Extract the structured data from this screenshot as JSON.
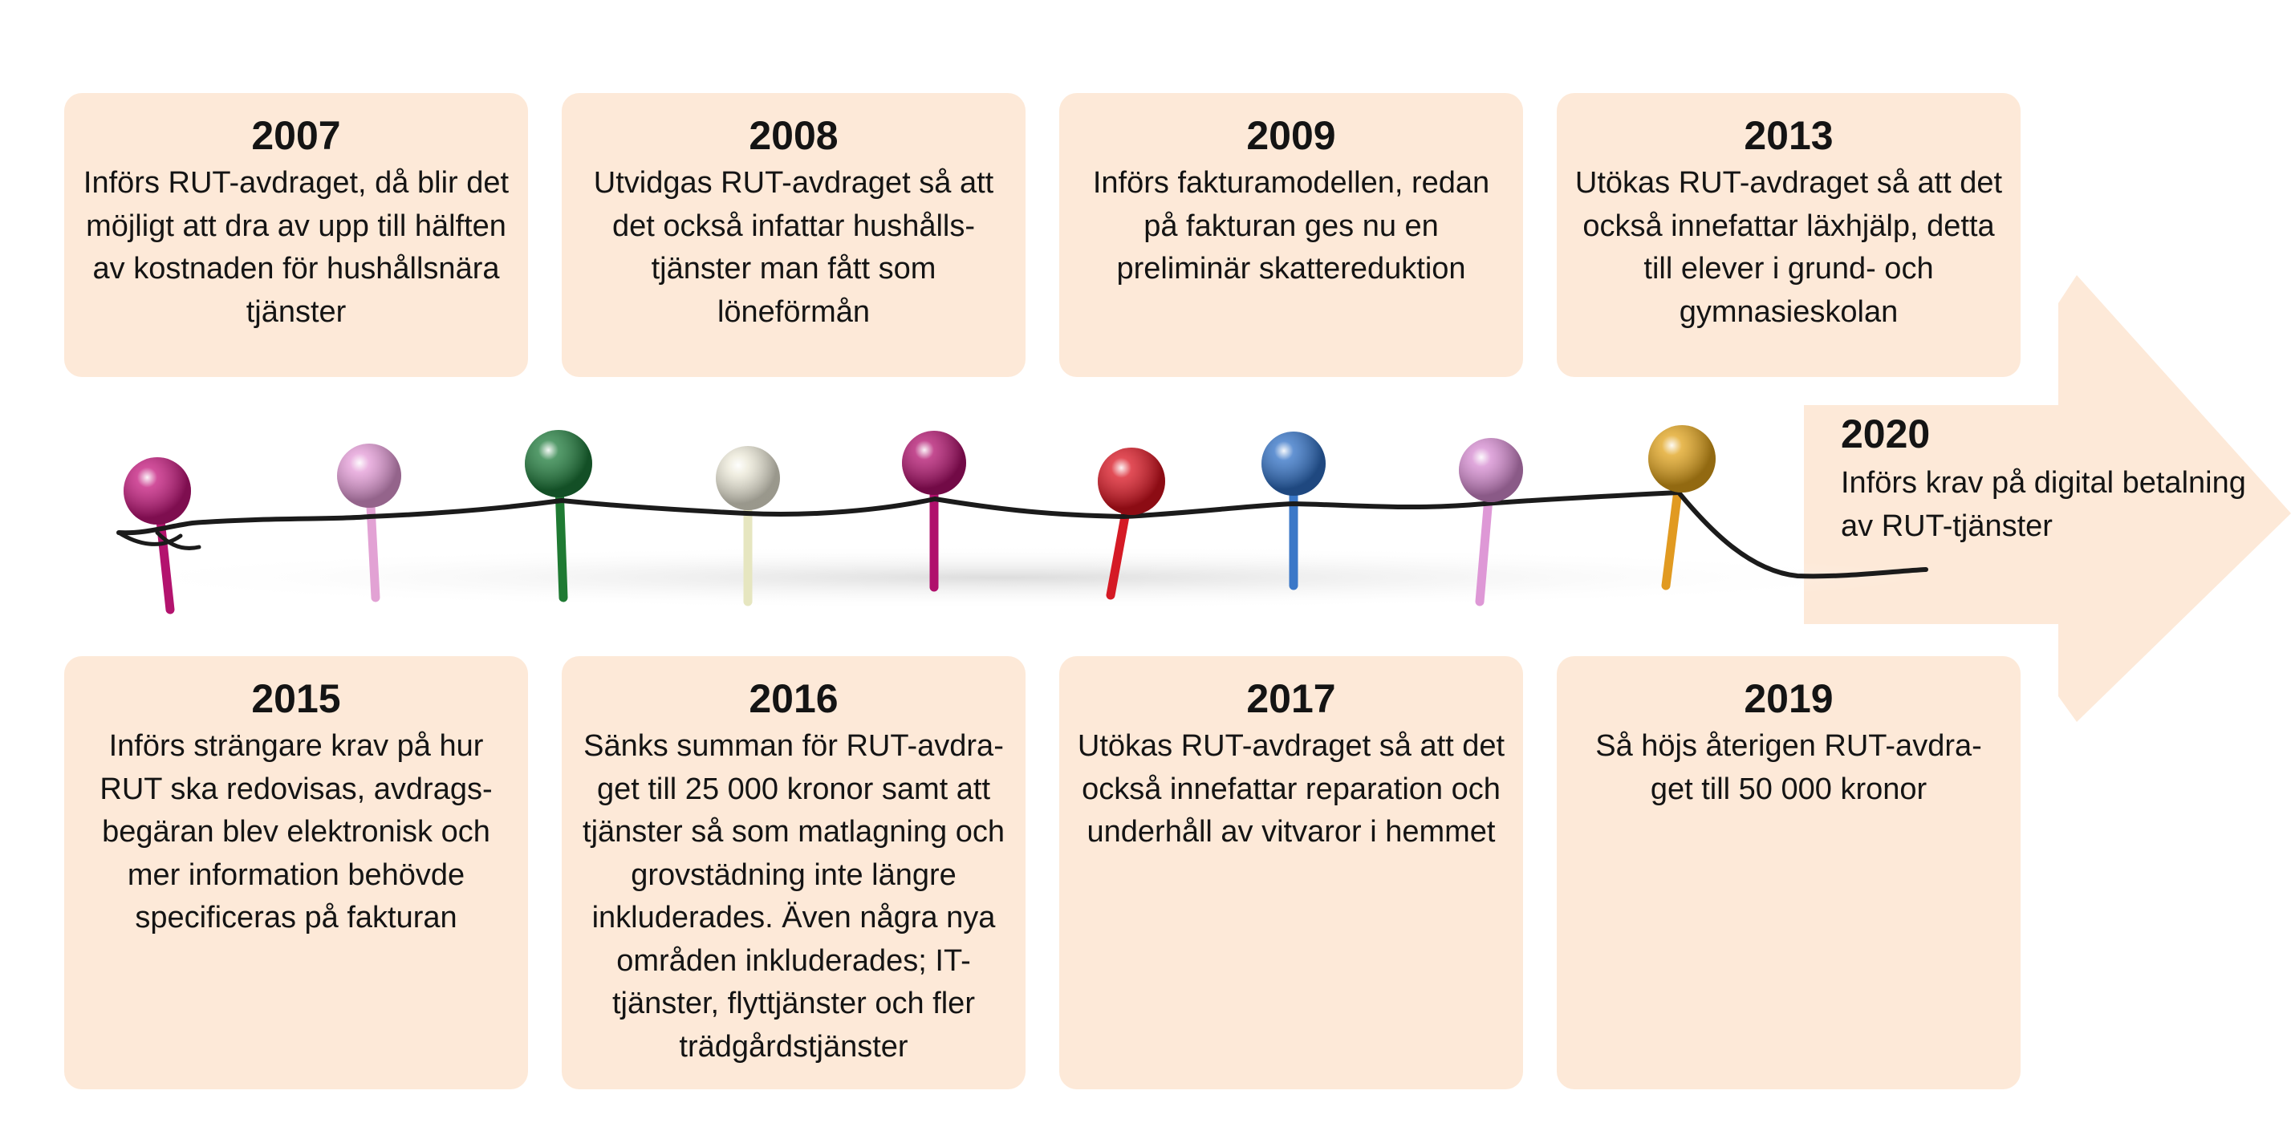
{
  "colors": {
    "card_background": "#fde9d8",
    "arrow_fill": "#fde9d8",
    "text": "#141414",
    "string": "#1b1b1b"
  },
  "events_top": [
    {
      "year": "2007",
      "text": "Införs RUT-avdraget, då blir det möjligt att dra av upp till hälften av kostnaden för hushållsnära tjänster"
    },
    {
      "year": "2008",
      "text": "Utvidgas RUT-avdraget så att det också infattar hushålls- tjänster man fått som löneförmån"
    },
    {
      "year": "2009",
      "text": "Införs fakturamodellen, redan på fakturan ges nu en preliminär skattereduktion"
    },
    {
      "year": "2013",
      "text": "Utökas RUT-avdraget så att det också innefattar läxhjälp, detta till elever i grund- och gymnasieskolan"
    }
  ],
  "events_bottom": [
    {
      "year": "2015",
      "text": "Införs strängare krav på hur RUT ska redovisas, avdrags- begäran blev elektronisk och mer information behövde specificeras på fakturan"
    },
    {
      "year": "2016",
      "text": "Sänks summan för RUT-avdra- get till 25 000 kronor samt att tjänster så som matlagning och grovstädning inte längre inkluderades. Även några nya områden inkluderades; IT-tjänster, flyttjänster och fler trädgårdstjänster"
    },
    {
      "year": "2017",
      "text": "Utökas RUT-avdraget så att det också innefattar reparation och underhåll av vitvaror i hemmet"
    },
    {
      "year": "2019",
      "text": "Så höjs återigen RUT-avdra- get till 50 000 kronor"
    }
  ],
  "event_final": {
    "year": "2020",
    "text": "Införs krav på digital betalning av RUT-tjänster"
  },
  "pins": [
    {
      "color": "#c2157a",
      "shaft": "#b3136e"
    },
    {
      "color": "#e39ad6",
      "shaft": "#e2a2d4"
    },
    {
      "color": "#1d7a3a",
      "shaft": "#1f7a33"
    },
    {
      "color": "#ece9d8",
      "shaft": "#e6e6c0"
    },
    {
      "color": "#b0106c",
      "shaft": "#b0106c"
    },
    {
      "color": "#d8121f",
      "shaft": "#d51a25"
    },
    {
      "color": "#2f6fc4",
      "shaft": "#3b78c8"
    },
    {
      "color": "#d58ad0",
      "shaft": "#de98d6"
    },
    {
      "color": "#e0a21a",
      "shaft": "#e19a21"
    }
  ]
}
